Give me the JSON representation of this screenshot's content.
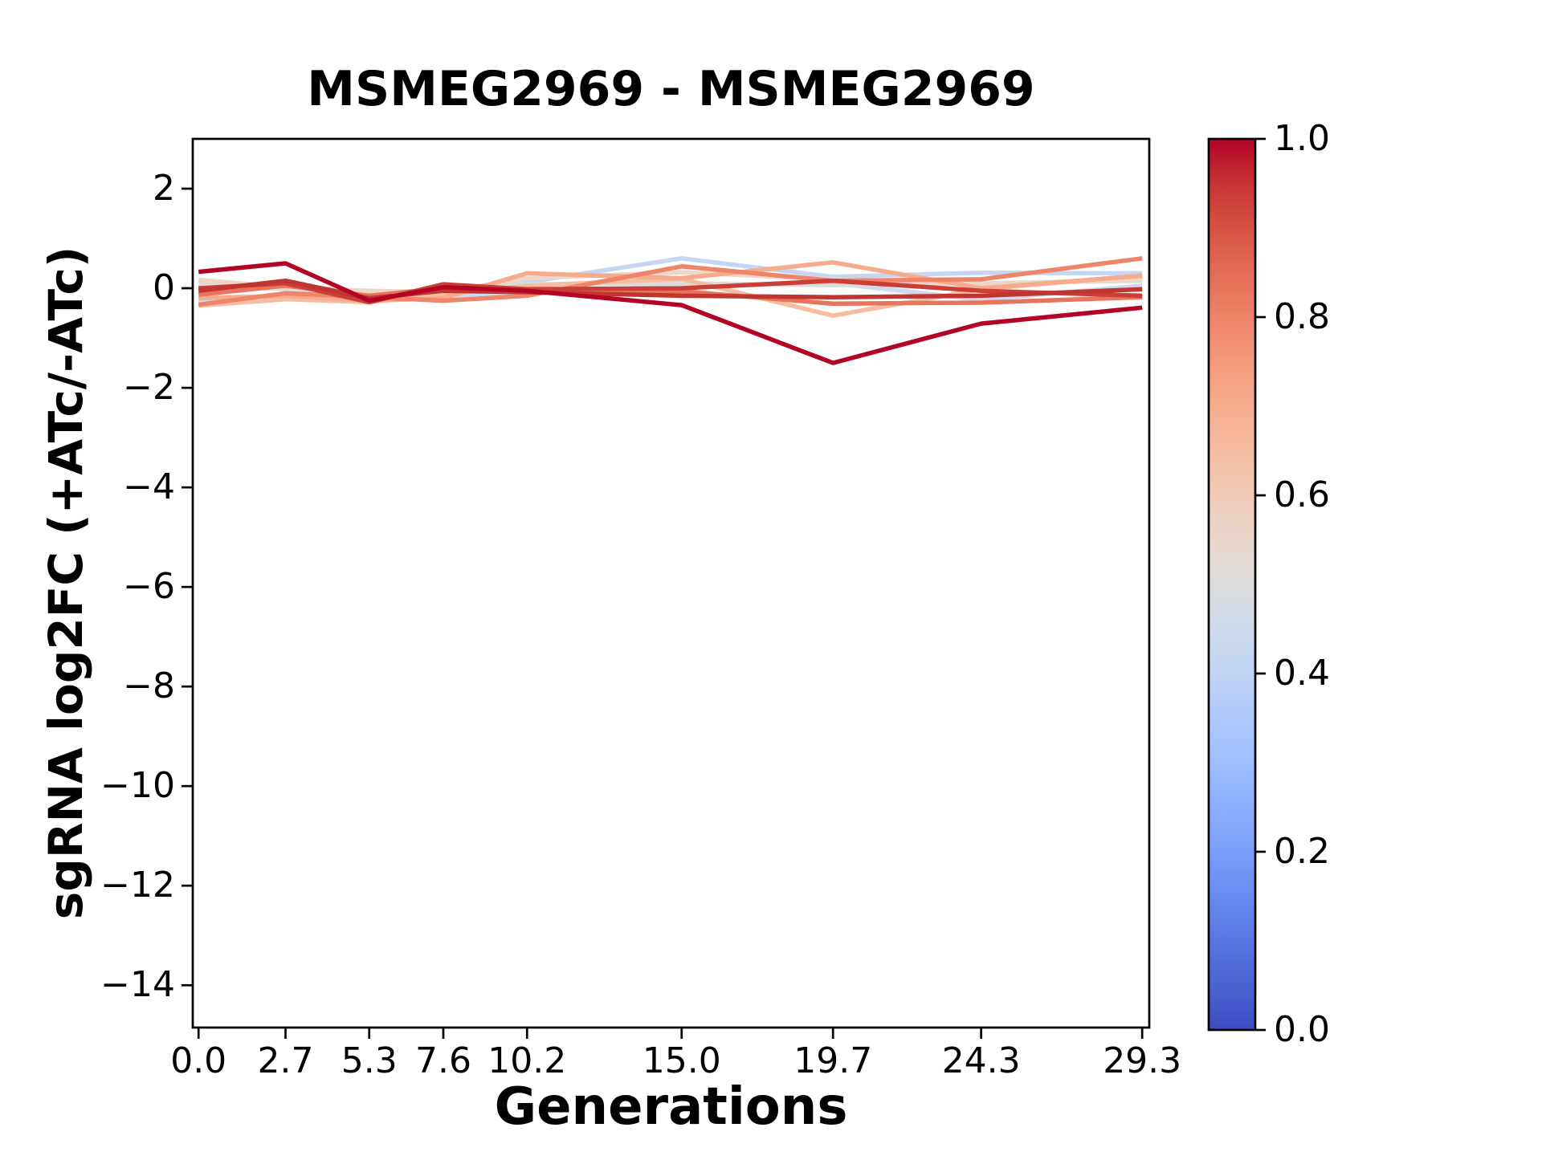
{
  "chart_data": {
    "type": "line",
    "title": "MSMEG2969 - MSMEG2969",
    "xlabel": "Generations",
    "ylabel": "sgRNA log2FC (+ATc/-ATc)",
    "x": [
      0.0,
      2.7,
      5.3,
      7.6,
      10.2,
      15.0,
      19.7,
      24.3,
      29.3
    ],
    "xtick_labels": [
      "0.0",
      "2.7",
      "5.3",
      "7.6",
      "10.2",
      "15.0",
      "19.7",
      "24.3",
      "29.3"
    ],
    "ytick_values": [
      2,
      0,
      -2,
      -4,
      -6,
      -8,
      -10,
      -12,
      -14
    ],
    "ytick_labels": [
      "2",
      "0",
      "−2",
      "−4",
      "−6",
      "−8",
      "−10",
      "−12",
      "−14"
    ],
    "xlim": [
      -0.18,
      29.52
    ],
    "ylim": [
      -14.85,
      3.0
    ],
    "grid": false,
    "legend": "none",
    "series": [
      {
        "name": "line-01",
        "color": "#cdd9ee",
        "values": [
          -0.27,
          -0.12,
          -0.22,
          -0.18,
          -0.1,
          0.05,
          0.1,
          -0.23,
          0.05
        ]
      },
      {
        "name": "line-02",
        "color": "#c5d6f2",
        "values": [
          0.1,
          0.05,
          -0.08,
          -0.05,
          0.12,
          0.6,
          0.23,
          0.31,
          0.3
        ]
      },
      {
        "name": "line-03",
        "color": "#dcdcdb",
        "values": [
          0.08,
          -0.02,
          -0.12,
          -0.02,
          0.08,
          0.1,
          0.06,
          0.1,
          0.15
        ]
      },
      {
        "name": "line-04",
        "color": "#eed5c6",
        "values": [
          0.17,
          0.02,
          -0.05,
          -0.08,
          0.2,
          0.32,
          0.18,
          0.08,
          0.18
        ]
      },
      {
        "name": "line-05",
        "color": "#f6bda2",
        "values": [
          -0.35,
          -0.22,
          -0.28,
          -0.12,
          0.05,
          0.19,
          -0.55,
          -0.02,
          0.26
        ]
      },
      {
        "name": "line-06",
        "color": "#f5ab8c",
        "values": [
          -0.2,
          -0.15,
          -0.25,
          -0.2,
          0.3,
          0.2,
          0.52,
          0.0,
          0.25
        ]
      },
      {
        "name": "line-07",
        "color": "#ee8468",
        "values": [
          -0.33,
          -0.1,
          -0.18,
          -0.25,
          -0.15,
          0.44,
          0.15,
          0.18,
          0.6
        ]
      },
      {
        "name": "line-08",
        "color": "#e8745c",
        "values": [
          -0.13,
          0.05,
          -0.15,
          0.0,
          -0.05,
          -0.06,
          -0.31,
          -0.29,
          -0.18
        ]
      },
      {
        "name": "line-09",
        "color": "#cb3e38",
        "values": [
          0.0,
          0.1,
          -0.28,
          0.08,
          -0.02,
          0.0,
          0.15,
          -0.05,
          -0.15
        ]
      },
      {
        "name": "line-10",
        "color": "#c0352f",
        "values": [
          -0.05,
          0.15,
          -0.2,
          -0.05,
          -0.08,
          -0.15,
          -0.18,
          -0.15,
          -0.02
        ]
      },
      {
        "name": "line-11",
        "color": "#b40426",
        "values": [
          0.33,
          0.5,
          -0.25,
          0.02,
          -0.05,
          -0.34,
          -1.5,
          -0.71,
          -0.39
        ]
      }
    ],
    "colorbar": {
      "cmap": "coolwarm",
      "tick_values": [
        1.0,
        0.8,
        0.6,
        0.4,
        0.2,
        0.0
      ],
      "tick_labels": [
        "1.0",
        "0.8",
        "0.6",
        "0.4",
        "0.2",
        "0.0"
      ],
      "range": [
        0.0,
        1.0
      ],
      "stops": [
        {
          "pos": 0.0,
          "color": "#3b4cc0"
        },
        {
          "pos": 0.05,
          "color": "#4a63d3"
        },
        {
          "pos": 0.1,
          "color": "#5977e3"
        },
        {
          "pos": 0.15,
          "color": "#688bf0"
        },
        {
          "pos": 0.2,
          "color": "#7b9ff9"
        },
        {
          "pos": 0.25,
          "color": "#8caffe"
        },
        {
          "pos": 0.3,
          "color": "#9ebeff"
        },
        {
          "pos": 0.35,
          "color": "#aec9fc"
        },
        {
          "pos": 0.4,
          "color": "#c0d4f5"
        },
        {
          "pos": 0.45,
          "color": "#cedaeb"
        },
        {
          "pos": 0.5,
          "color": "#dddcdc"
        },
        {
          "pos": 0.55,
          "color": "#e8d6cb"
        },
        {
          "pos": 0.6,
          "color": "#f2cab5"
        },
        {
          "pos": 0.65,
          "color": "#f5bda1"
        },
        {
          "pos": 0.7,
          "color": "#f7ac8e"
        },
        {
          "pos": 0.75,
          "color": "#f49a7b"
        },
        {
          "pos": 0.8,
          "color": "#ee8468"
        },
        {
          "pos": 0.85,
          "color": "#e36c55"
        },
        {
          "pos": 0.9,
          "color": "#d65244"
        },
        {
          "pos": 0.95,
          "color": "#c63434"
        },
        {
          "pos": 1.0,
          "color": "#b40426"
        }
      ]
    },
    "axis_color": "#000000"
  }
}
